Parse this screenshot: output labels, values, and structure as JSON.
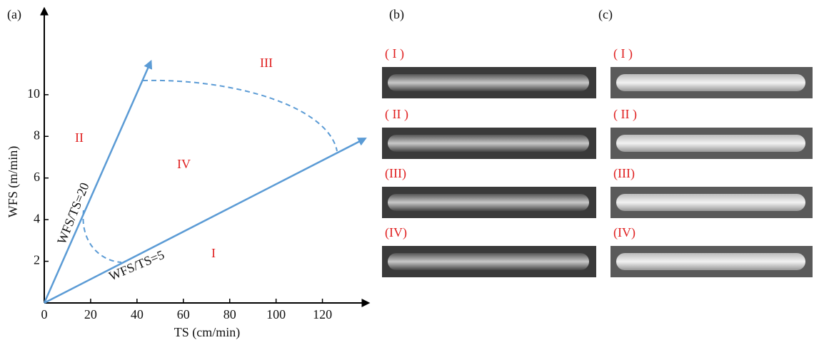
{
  "chart_data": {
    "type": "process-map",
    "panel_label": "(a)",
    "x_label": "TS (cm/min)",
    "y_label": "WFS (m/min)",
    "xlim": [
      0,
      138
    ],
    "ylim": [
      0,
      14
    ],
    "xticks": [
      0,
      20,
      40,
      60,
      80,
      100,
      120
    ],
    "yticks": [
      2,
      4,
      6,
      8,
      10
    ],
    "series": [
      {
        "name": "WFS/TS=20",
        "color": "#5b9bd5",
        "x": [
          0,
          46
        ],
        "values": [
          0,
          11.6
        ]
      },
      {
        "name": "WFS/TS=5",
        "color": "#5b9bd5",
        "x": [
          0,
          138.5
        ],
        "values": [
          0,
          7.9
        ]
      }
    ],
    "regions": [
      "I",
      "II",
      "III",
      "IV"
    ],
    "region_color": "#e02020"
  },
  "photo_panels": [
    {
      "label": "(b)",
      "rows": [
        "( I )",
        "( II )",
        "(III)",
        "(IV)"
      ]
    },
    {
      "label": "(c)",
      "rows": [
        "( I )",
        "( II )",
        "(III)",
        "(IV)"
      ]
    }
  ]
}
